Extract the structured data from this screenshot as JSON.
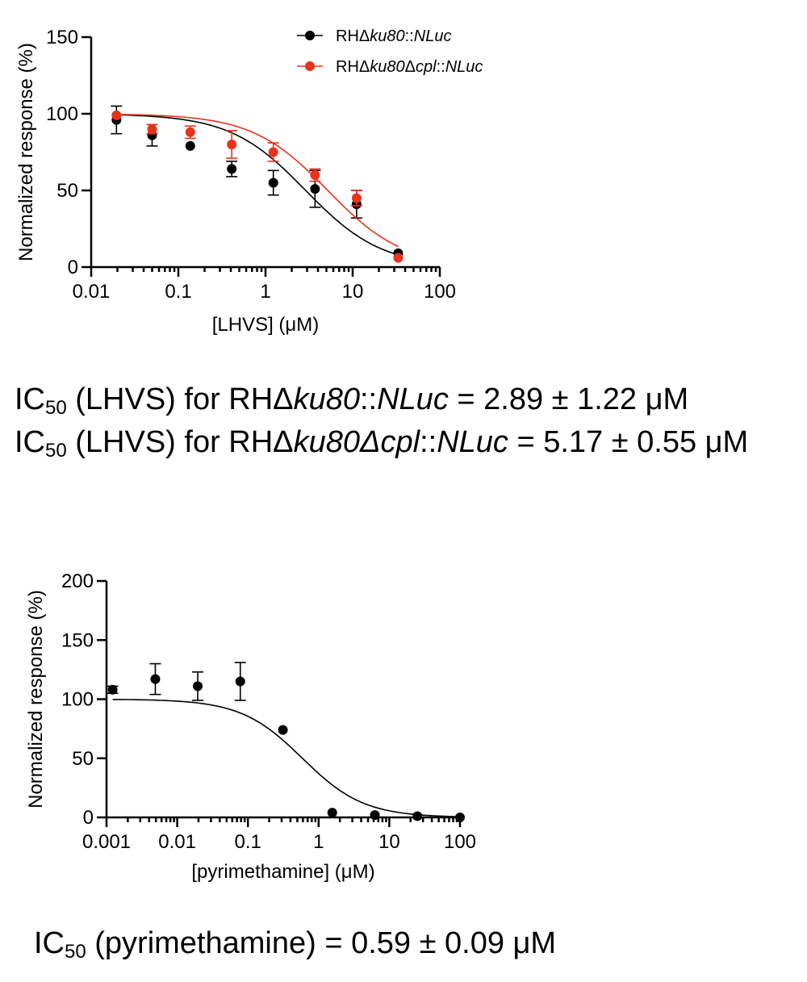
{
  "chart_data": [
    {
      "type": "scatter",
      "xscale": "log",
      "xlabel": "[LHVS] (μM)",
      "ylabel": "Normalized response (%)",
      "xlim": [
        0.01,
        100
      ],
      "ylim": [
        0,
        150
      ],
      "xticks": [
        0.01,
        0.1,
        1,
        10,
        100
      ],
      "xtick_labels": [
        "0.01",
        "0.1",
        "1",
        "10",
        "100"
      ],
      "yticks": [
        0,
        50,
        100,
        150
      ],
      "ytick_labels": [
        "0",
        "50",
        "100",
        "150"
      ],
      "legend_position": "top-right",
      "series": [
        {
          "name_parts": [
            [
              "RHΔ",
              "normal"
            ],
            [
              "ku80",
              "italic"
            ],
            [
              "::",
              "normal"
            ],
            [
              "NLuc",
              "italic"
            ]
          ],
          "color": "#000000",
          "x": [
            0.0195,
            0.05,
            0.137,
            0.41,
            1.23,
            3.7,
            11.1,
            33.3
          ],
          "y": [
            96,
            86,
            79,
            64,
            55,
            51,
            41,
            9
          ],
          "err": [
            9,
            7,
            0,
            5,
            8,
            12,
            9,
            0
          ],
          "fit_ic50": 2.89
        },
        {
          "name_parts": [
            [
              "RHΔ",
              "normal"
            ],
            [
              "ku80",
              "italic"
            ],
            [
              "Δ",
              "normal"
            ],
            [
              "cpl",
              "italic"
            ],
            [
              "::",
              "normal"
            ],
            [
              "NLuc",
              "italic"
            ]
          ],
          "color": "#e8331c",
          "x": [
            0.0195,
            0.05,
            0.137,
            0.41,
            1.23,
            3.7,
            11.1,
            33.3
          ],
          "y": [
            99,
            90,
            88,
            80,
            75,
            60,
            45,
            6
          ],
          "err": [
            0,
            3,
            4,
            9,
            6,
            4,
            5,
            0
          ],
          "fit_ic50": 5.17
        }
      ]
    },
    {
      "type": "scatter",
      "xscale": "log",
      "xlabel": "[pyrimethamine] (μM)",
      "ylabel": "Normalized response (%)",
      "xlim": [
        0.001,
        100
      ],
      "ylim": [
        0,
        200
      ],
      "xticks": [
        0.001,
        0.01,
        0.1,
        1,
        10,
        100
      ],
      "xtick_labels": [
        "0.001",
        "0.01",
        "0.1",
        "1",
        "10",
        "100"
      ],
      "yticks": [
        0,
        50,
        100,
        150,
        200
      ],
      "ytick_labels": [
        "0",
        "50",
        "100",
        "150",
        "200"
      ],
      "series": [
        {
          "color": "#000000",
          "x": [
            0.00122,
            0.0049,
            0.0195,
            0.078,
            0.3125,
            1.56,
            6.25,
            25,
            100
          ],
          "y": [
            108,
            117,
            111,
            115,
            74,
            4,
            2,
            1,
            0
          ],
          "err": [
            3,
            13,
            12,
            16,
            0,
            0,
            0,
            0,
            0
          ],
          "fit_ic50": 0.59
        }
      ]
    }
  ],
  "ic50_text": {
    "lhvs_line1": {
      "prefix": "IC",
      "sub": "50",
      "mid": " (LHVS) for RHΔ",
      "i1": "ku80",
      "mid2": "::",
      "i2": "NLuc",
      "suffix": " = 2.89 ± 1.22 μM"
    },
    "lhvs_line2": {
      "prefix": "IC",
      "sub": "50",
      "mid": " (LHVS) for RHΔ",
      "i1": "ku80Δcpl",
      "mid2": "::",
      "i2": "NLuc",
      "suffix": " = 5.17 ± 0.55 μM"
    },
    "pyr_line": {
      "prefix": "IC",
      "sub": "50",
      "suffix": " (pyrimethamine) = 0.59 ± 0.09 μM"
    }
  }
}
